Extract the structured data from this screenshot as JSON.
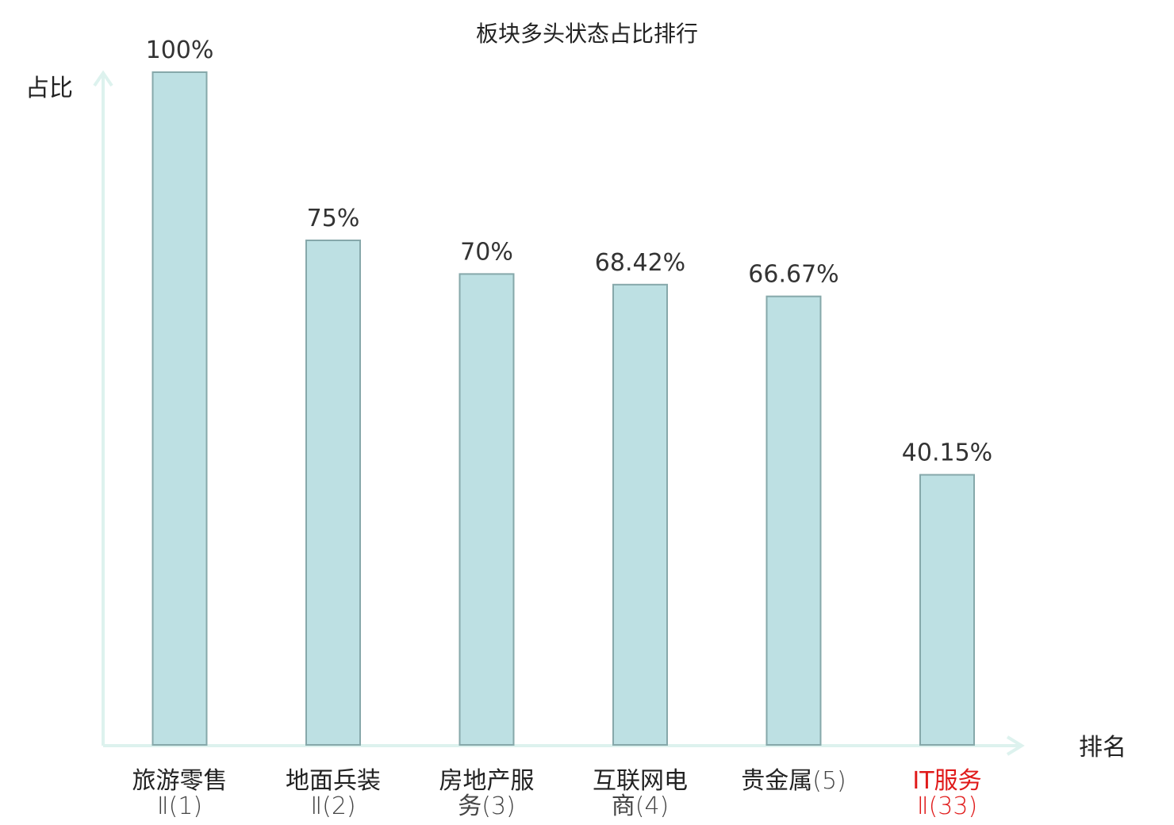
{
  "chart_data": {
    "type": "bar",
    "title": "板块多头状态占比排行",
    "ylabel": "占比",
    "xlabel": "排名",
    "ylim": [
      0,
      100
    ],
    "value_suffix": "%",
    "grid": false,
    "categories": [
      {
        "name_lines": [
          "旅游零售"
        ],
        "rank_suffix": "Ⅱ(1)",
        "value": 100,
        "value_label": "100%",
        "highlight": false
      },
      {
        "name_lines": [
          "地面兵装"
        ],
        "rank_suffix": "Ⅱ(2)",
        "value": 75,
        "value_label": "75%",
        "highlight": false
      },
      {
        "name_lines": [
          "房地产服"
        ],
        "rank_suffix": "务(3)",
        "value": 70,
        "value_label": "70%",
        "highlight": false
      },
      {
        "name_lines": [
          "互联网电"
        ],
        "rank_suffix": "商(4)",
        "value": 68.42,
        "value_label": "68.42%",
        "highlight": false
      },
      {
        "name_lines": [
          "贵金属"
        ],
        "rank_suffix": "(5)",
        "value": 66.67,
        "value_label": "66.67%",
        "highlight": false,
        "inline_suffix": true
      },
      {
        "name_lines": [
          "IT服务"
        ],
        "rank_suffix": "Ⅱ(33)",
        "value": 40.15,
        "value_label": "40.15%",
        "highlight": true
      }
    ],
    "colors": {
      "bar_fill": "#bde0e3",
      "bar_stroke": "#86a8aa",
      "axis": "#ddf2ee",
      "text": "#222222",
      "rank_text": "#444444",
      "highlight": "#e01a1a"
    }
  }
}
